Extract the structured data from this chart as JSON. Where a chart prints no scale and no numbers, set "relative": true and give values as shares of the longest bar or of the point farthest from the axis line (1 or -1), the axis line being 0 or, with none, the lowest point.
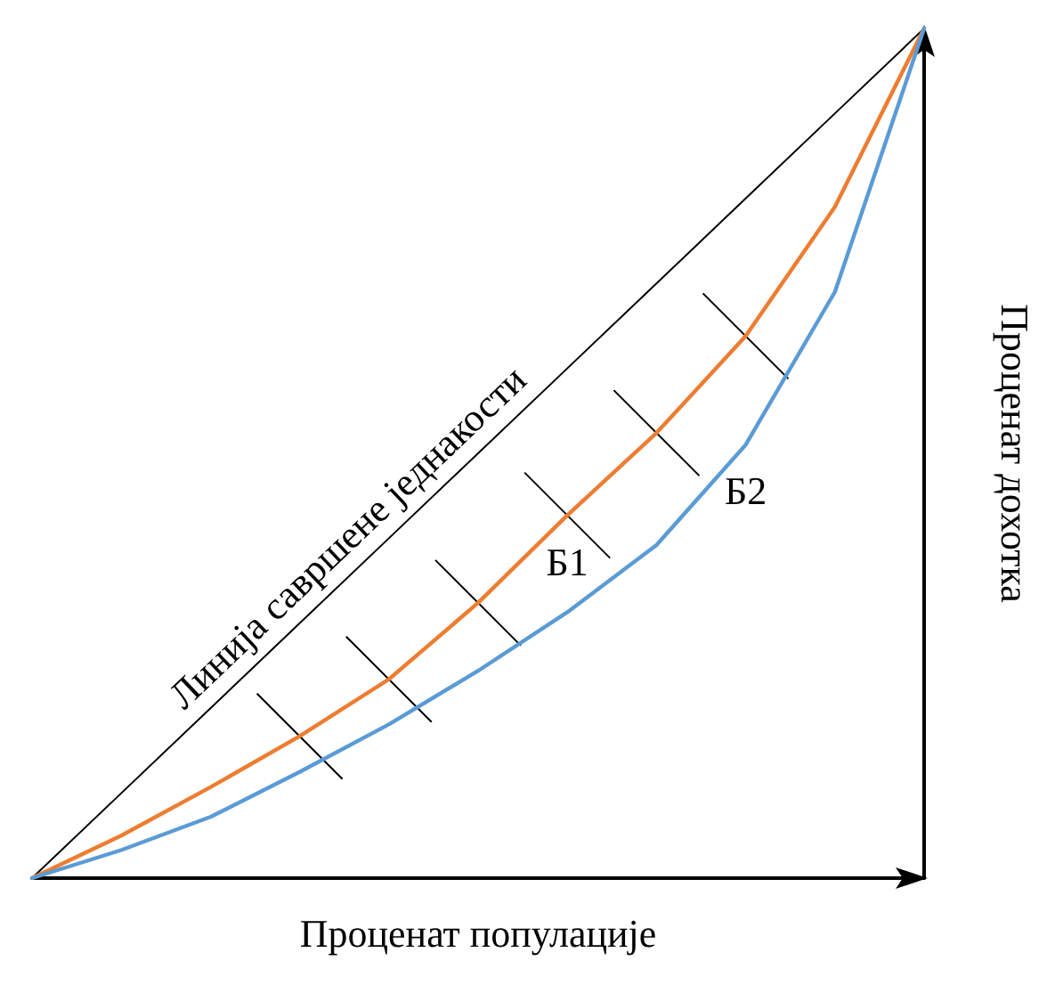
{
  "chart_data": {
    "type": "line",
    "relative": true,
    "xlabel": "Проценат популације",
    "ylabel": "Проценат дохотка",
    "grid": false,
    "marker": "none",
    "line_style": "solid",
    "categories": [
      null,
      null,
      null,
      null,
      null,
      null,
      null,
      null,
      null,
      null,
      null
    ],
    "series": [
      {
        "color": "#000000",
        "values": [
          0,
          0.1,
          0.2,
          0.3,
          0.4,
          0.5,
          0.6,
          0.7,
          0.8,
          0.9,
          1
        ]
      },
      {
        "color": "#ed7d31",
        "values": [
          0,
          0.05,
          0.107,
          0.167,
          0.234,
          0.324,
          0.427,
          0.524,
          0.638,
          0.79,
          1
        ]
      },
      {
        "color": "#5b9bd5",
        "values": [
          0,
          0.033,
          0.072,
          0.125,
          0.181,
          0.244,
          0.313,
          0.392,
          0.51,
          0.69,
          1
        ]
      }
    ],
    "annotations": [
      "Линија савршене једнакости",
      "Б1",
      "Б2"
    ]
  }
}
